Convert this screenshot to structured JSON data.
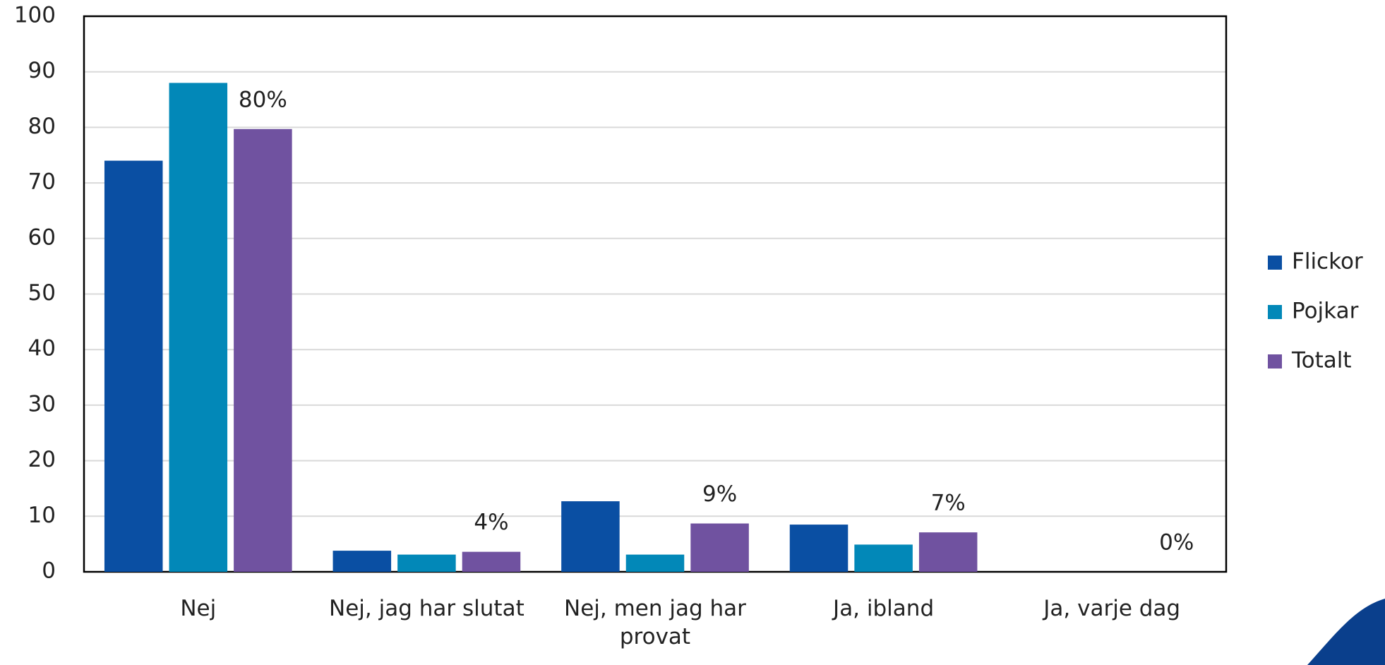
{
  "chart_data": {
    "type": "bar",
    "categories": [
      "Nej",
      "Nej, jag har slutat",
      "Nej, men jag har provat",
      "Ja, ibland",
      "Ja, varje dag"
    ],
    "series": [
      {
        "name": "Flickor",
        "color": "#0a4fa3",
        "values": [
          74,
          3.8,
          12.7,
          8.5,
          0
        ]
      },
      {
        "name": "Pojkar",
        "color": "#0288b8",
        "values": [
          88,
          3.1,
          3.1,
          4.9,
          0
        ]
      },
      {
        "name": "Totalt",
        "color": "#7052a0",
        "values": [
          79.7,
          3.6,
          8.7,
          7.1,
          0
        ],
        "value_labels": [
          "80%",
          "4%",
          "9%",
          "7%",
          "0%"
        ]
      }
    ],
    "ylim": [
      0,
      100
    ],
    "yticks": [
      0,
      10,
      20,
      30,
      40,
      50,
      60,
      70,
      80,
      90,
      100
    ],
    "grid": true,
    "legend": "right"
  }
}
